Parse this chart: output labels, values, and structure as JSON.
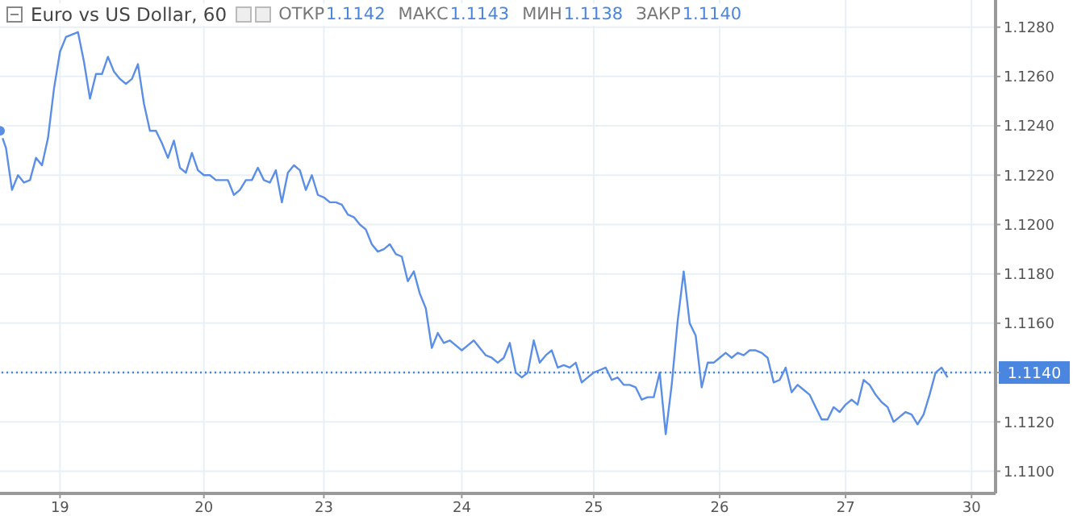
{
  "chart_data": {
    "type": "line",
    "title": "Euro vs US Dollar, 60",
    "annotations": [
      "ОТКР",
      "1.1142",
      "МАКС",
      "1.1143",
      "МИН",
      "1.1138",
      "ЗАКР",
      "1.1140"
    ],
    "categories": [
      null,
      null,
      null,
      null,
      null,
      null,
      null,
      null,
      null,
      null,
      "19",
      null,
      null,
      null,
      null,
      null,
      null,
      null,
      null,
      null,
      null,
      null,
      null,
      null,
      null,
      null,
      null,
      null,
      null,
      null,
      null,
      null,
      null,
      null,
      "20",
      null,
      null,
      null,
      null,
      null,
      null,
      null,
      null,
      null,
      null,
      null,
      null,
      null,
      null,
      null,
      null,
      null,
      null,
      null,
      "23",
      null,
      null,
      null,
      null,
      null,
      null,
      null,
      null,
      null,
      null,
      null,
      null,
      null,
      null,
      null,
      null,
      null,
      null,
      null,
      null,
      null,
      null,
      "24",
      null,
      null,
      null,
      null,
      null,
      null,
      null,
      null,
      null,
      null,
      null,
      null,
      null,
      null,
      null,
      null,
      null,
      null,
      null,
      null,
      null,
      "25",
      null,
      null,
      null,
      null,
      null,
      null,
      null,
      null,
      null,
      null,
      null,
      null,
      null,
      null,
      null,
      null,
      null,
      null,
      null,
      null,
      "26",
      null,
      null,
      null,
      null,
      null,
      null,
      null,
      null,
      null,
      null,
      null,
      null,
      null,
      null,
      null,
      null,
      null,
      null,
      null,
      null,
      "27",
      null,
      null,
      null,
      null,
      null,
      null,
      null,
      null,
      null,
      null,
      null,
      null,
      null,
      null,
      null,
      null,
      null,
      null,
      null,
      null,
      "30",
      null,
      null,
      null,
      null
    ],
    "series": [
      {
        "color": "#5b8ee6",
        "values": [
          1.1238,
          1.1231,
          1.1214,
          1.122,
          1.1217,
          1.1218,
          1.1227,
          1.1224,
          1.1235,
          1.1255,
          1.127,
          1.1276,
          1.1277,
          1.1278,
          1.1266,
          1.1251,
          1.1261,
          1.1261,
          1.1268,
          1.1262,
          1.1259,
          1.1257,
          1.1259,
          1.1265,
          1.1249,
          1.1238,
          1.1238,
          1.1233,
          1.1227,
          1.1234,
          1.1223,
          1.1221,
          1.1229,
          1.1222,
          1.122,
          1.122,
          1.1218,
          1.1218,
          1.1218,
          1.1212,
          1.1214,
          1.1218,
          1.1218,
          1.1223,
          1.1218,
          1.1217,
          1.1222,
          1.1209,
          1.1221,
          1.1224,
          1.1222,
          1.1214,
          1.122,
          1.1212,
          1.1211,
          1.1209,
          1.1209,
          1.1208,
          1.1204,
          1.1203,
          1.12,
          1.1198,
          1.1192,
          1.1189,
          1.119,
          1.1192,
          1.1188,
          1.1187,
          1.1177,
          1.1181,
          1.1172,
          1.1166,
          1.115,
          1.1156,
          1.1152,
          1.1153,
          1.1151,
          1.1149,
          1.1151,
          1.1153,
          1.115,
          1.1147,
          1.1146,
          1.1144,
          1.1146,
          1.1152,
          1.114,
          1.1138,
          1.114,
          1.1153,
          1.1144,
          1.1147,
          1.1149,
          1.1142,
          1.1143,
          1.1142,
          1.1144,
          1.1136,
          1.1138,
          1.114,
          1.1141,
          1.1142,
          1.1137,
          1.1138,
          1.1135,
          1.1135,
          1.1134,
          1.1129,
          1.113,
          1.113,
          1.114,
          1.1115,
          1.1135,
          1.1161,
          1.1181,
          1.116,
          1.1155,
          1.1134,
          1.1144,
          1.1144,
          1.1146,
          1.1148,
          1.1146,
          1.1148,
          1.1147,
          1.1149,
          1.1149,
          1.1148,
          1.1146,
          1.1136,
          1.1137,
          1.1142,
          1.1132,
          1.1135,
          1.1133,
          1.1131,
          1.1126,
          1.1121,
          1.1121,
          1.1126,
          1.1124,
          1.1127,
          1.1129,
          1.1127,
          1.1137,
          1.1135,
          1.1131,
          1.1128,
          1.1126,
          1.112,
          1.1122,
          1.1124,
          1.1123,
          1.1119,
          1.1123,
          1.1131,
          1.114,
          1.1142,
          1.1138,
          null,
          null,
          null,
          null,
          null,
          null,
          null,
          null
        ]
      }
    ],
    "ylim": [
      1.1091,
      1.1291
    ],
    "yticks": [
      {
        "value": 1.11,
        "label": "1.1100"
      },
      {
        "value": 1.112,
        "label": "1.1120"
      },
      {
        "value": 1.114,
        "label": null
      },
      {
        "value": 1.116,
        "label": "1.1160"
      },
      {
        "value": 1.118,
        "label": "1.1180"
      },
      {
        "value": 1.12,
        "label": "1.1200"
      },
      {
        "value": 1.122,
        "label": "1.1220"
      },
      {
        "value": 1.124,
        "label": "1.1240"
      },
      {
        "value": 1.126,
        "label": "1.1260"
      },
      {
        "value": 1.128,
        "label": "1.1280"
      }
    ],
    "ref_lines": [
      {
        "axis": "y",
        "value": 1.114,
        "label": "1.1140",
        "color": "#4a86e0",
        "line_style": "dotted"
      }
    ],
    "grid": true,
    "marker": "none",
    "line_style": "solid"
  }
}
